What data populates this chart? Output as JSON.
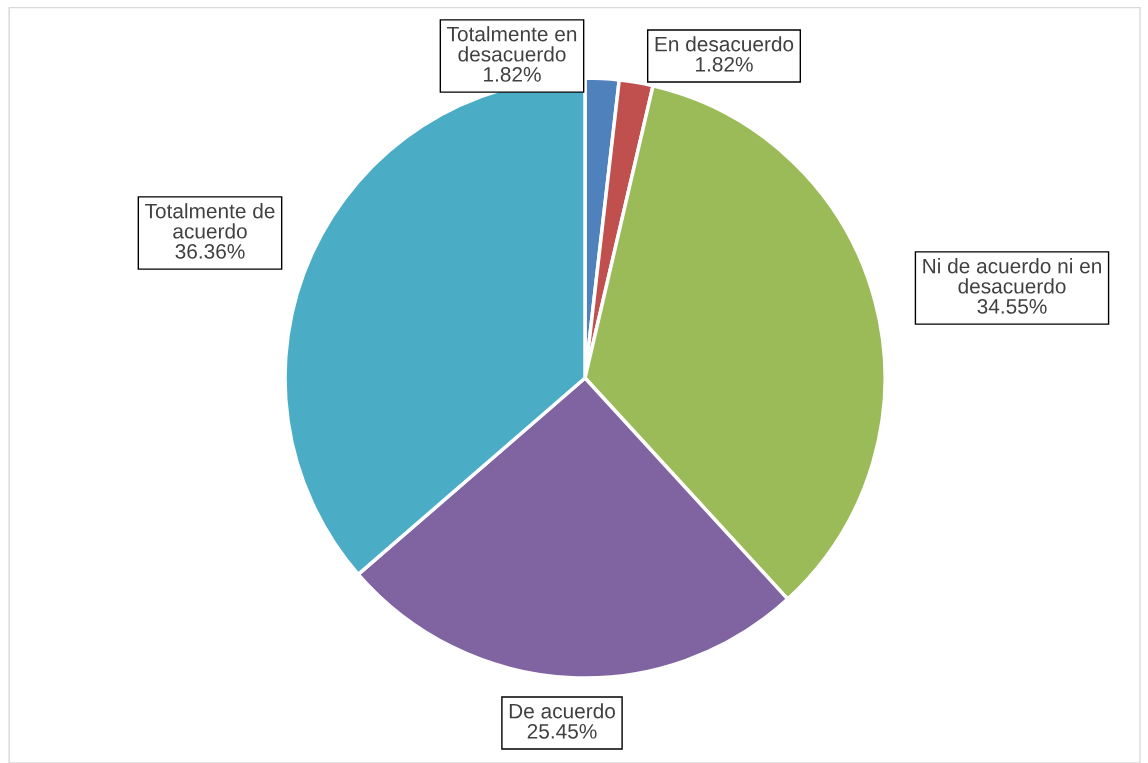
{
  "chart_data": {
    "type": "pie",
    "categories": [
      "Totalmente en\ndesacuerdo",
      "En desacuerdo",
      "Ni de acuerdo ni en\ndesacuerdo",
      "De acuerdo",
      "Totalmente de\nacuerdo"
    ],
    "values": [
      1.82,
      1.82,
      34.55,
      25.45,
      36.36
    ],
    "colors": [
      "#4f81bd",
      "#c0504d",
      "#9bbb59",
      "#8064a2",
      "#4bacc6"
    ],
    "value_labels": [
      "1.82%",
      "1.82%",
      "34.55%",
      "25.45%",
      "36.36%"
    ],
    "legend": false
  }
}
